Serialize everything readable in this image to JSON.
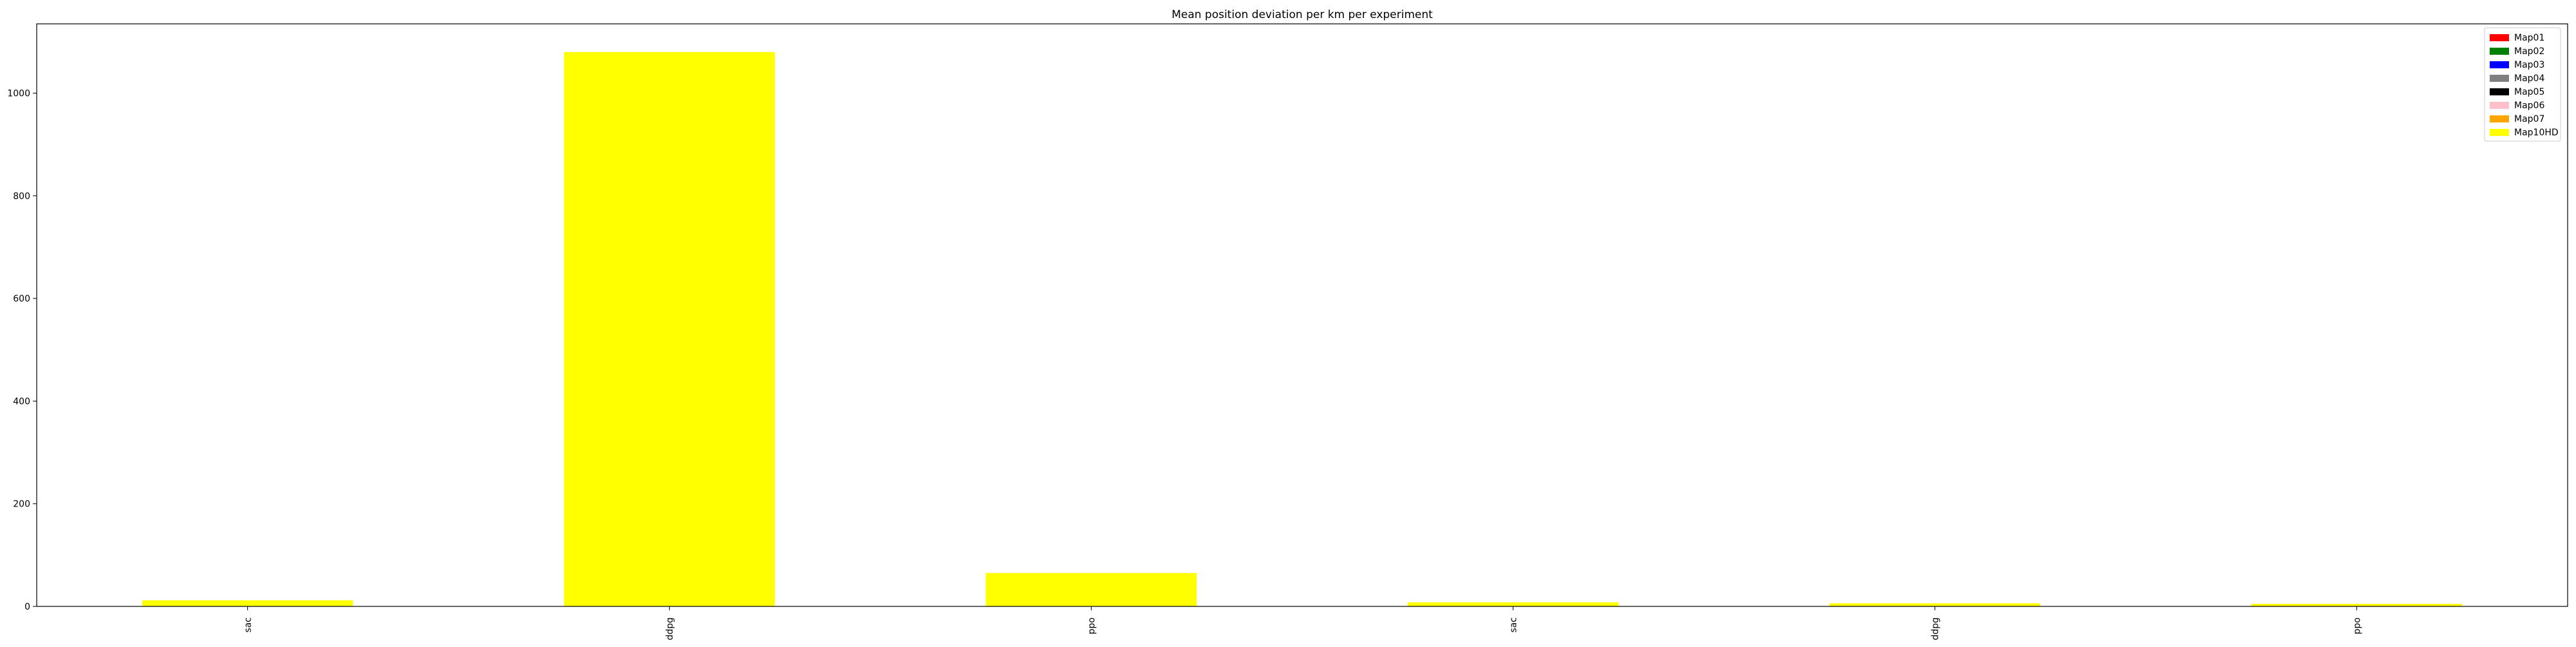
{
  "chart_data": {
    "type": "bar",
    "title": "Mean position deviation per km per experiment",
    "xlabel": "",
    "ylabel": "",
    "categories": [
      "sac",
      "ddpg",
      "ppo",
      "sac",
      "ddpg",
      "ppo"
    ],
    "ylim": [
      0,
      1135
    ],
    "yticks": [
      0,
      200,
      400,
      600,
      800,
      1000
    ],
    "stacked": true,
    "grid": false,
    "legend_position": "top-right",
    "series": [
      {
        "name": "Map01",
        "color": "#ff0000",
        "values": [
          0,
          0,
          0,
          0,
          0,
          0
        ]
      },
      {
        "name": "Map02",
        "color": "#008000",
        "values": [
          0,
          0,
          0,
          0,
          0,
          0
        ]
      },
      {
        "name": "Map03",
        "color": "#0000ff",
        "values": [
          0,
          0,
          0,
          0,
          0,
          0
        ]
      },
      {
        "name": "Map04",
        "color": "#808080",
        "values": [
          0,
          0,
          0,
          0,
          0,
          0
        ]
      },
      {
        "name": "Map05",
        "color": "#000000",
        "values": [
          0,
          0,
          0,
          0,
          0,
          0
        ]
      },
      {
        "name": "Map06",
        "color": "#ffc0cb",
        "values": [
          0,
          0,
          0,
          0,
          0,
          0
        ]
      },
      {
        "name": "Map07",
        "color": "#ffa500",
        "values": [
          0,
          0,
          0,
          0,
          0,
          0
        ]
      },
      {
        "name": "Map10HD",
        "color": "#ffff00",
        "values": [
          12,
          1080,
          65,
          8,
          6,
          5
        ]
      }
    ]
  }
}
